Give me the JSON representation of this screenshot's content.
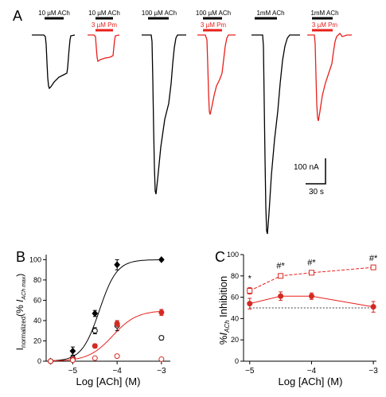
{
  "colors": {
    "control": "#000000",
    "drug": "#e8201c",
    "drug_marker": "#d42a22"
  },
  "panel_a": {
    "letter": "A",
    "traces": [
      {
        "label": "10 µM ACh",
        "drug_label": "",
        "peak": 29
      },
      {
        "label": "10 µM ACh",
        "drug_label": "3 µM Pm",
        "peak": 14
      },
      {
        "label": "100 µM ACh",
        "drug_label": "",
        "peak": 100
      },
      {
        "label": "100 µM ACh",
        "drug_label": "3 µM Pm",
        "peak": 46
      },
      {
        "label": "1mM ACh",
        "drug_label": "",
        "peak": 126
      },
      {
        "label": "1mM ACh",
        "drug_label": "3 µM Pm",
        "peak": 53
      }
    ],
    "scale_current": "100 nA",
    "scale_time": "30 s"
  },
  "panel_b": {
    "letter": "B",
    "chart_data": {
      "type": "scatter",
      "xlabel": "Log [ACh] (M)",
      "ylabel_main": "I",
      "ylabel_sub": "normalized",
      "ylabel_paren": "(% ",
      "ylabel_i": "I",
      "ylabel_isub": "ACh max",
      "ylabel_close": ")",
      "xlim": [
        -5.6,
        -2.8
      ],
      "ylim": [
        0,
        105
      ],
      "xticks": [
        -5,
        -4,
        -3
      ],
      "xtick_labels": [
        "−5",
        "−4",
        "−3"
      ],
      "yticks": [
        0,
        20,
        40,
        60,
        80,
        100
      ],
      "ytick_labels": [
        "0",
        "20",
        "40",
        "60",
        "80",
        "100"
      ],
      "series": [
        {
          "style": "filled-black",
          "x": [
            -5.5,
            -5.0,
            -4.5,
            -4.0,
            -3.0
          ],
          "y": [
            0,
            10,
            47,
            95,
            100
          ],
          "err": [
            1,
            4,
            3,
            5,
            1
          ]
        },
        {
          "style": "open-black",
          "x": [
            -5.5,
            -5.0,
            -4.5,
            -4.0,
            -3.0
          ],
          "y": [
            0,
            3,
            30,
            35,
            23
          ],
          "err": [
            1,
            2,
            3,
            5,
            2
          ]
        },
        {
          "style": "filled-red",
          "x": [
            -5.5,
            -5.0,
            -4.5,
            -4.0,
            -3.0
          ],
          "y": [
            0,
            2,
            15,
            37,
            48
          ],
          "err": [
            1,
            1,
            2,
            3,
            3
          ]
        },
        {
          "style": "open-red",
          "x": [
            -5.5,
            -5.0,
            -4.5,
            -4.0,
            -3.0
          ],
          "y": [
            0,
            1,
            3,
            5,
            2
          ],
          "err": [
            1,
            1,
            1,
            1,
            1
          ]
        }
      ],
      "fits": [
        {
          "style": "black",
          "top": 100,
          "ec50_log": -4.4,
          "hill": 2.2
        },
        {
          "style": "red",
          "top": 50,
          "ec50_log": -4.1,
          "hill": 1.6
        }
      ]
    }
  },
  "panel_c": {
    "letter": "C",
    "chart_data": {
      "type": "line",
      "xlabel": "Log [ACh] (M)",
      "ylabel_pre": "%",
      "ylabel_i": "I",
      "ylabel_sub": "ACh",
      "ylabel_post": " Inhibition",
      "xlim": [
        -5.1,
        -2.95
      ],
      "ylim": [
        0,
        100
      ],
      "xticks": [
        -5,
        -4,
        -3
      ],
      "xtick_labels": [
        "−5",
        "−4",
        "−3"
      ],
      "yticks": [
        0,
        20,
        40,
        60,
        80,
        100
      ],
      "ytick_labels": [
        "0",
        "20",
        "40",
        "60",
        "80",
        "100"
      ],
      "reference_line": 50,
      "series": [
        {
          "style": "open-red-dashed",
          "x": [
            -5.0,
            -4.5,
            -4.0,
            -3.0
          ],
          "y": [
            66,
            80,
            83,
            88
          ],
          "err": [
            3,
            2,
            2,
            1
          ]
        },
        {
          "style": "filled-red-solid",
          "x": [
            -5.0,
            -4.5,
            -4.0,
            -3.0
          ],
          "y": [
            54,
            61,
            61,
            51
          ],
          "err": [
            5,
            4,
            3,
            5
          ]
        }
      ],
      "annotations": [
        {
          "x": -5.0,
          "y": 75,
          "text": "*"
        },
        {
          "x": -4.5,
          "y": 87,
          "text": "#*"
        },
        {
          "x": -4.0,
          "y": 90,
          "text": "#*"
        },
        {
          "x": -3.0,
          "y": 94,
          "text": "#*"
        }
      ]
    }
  }
}
